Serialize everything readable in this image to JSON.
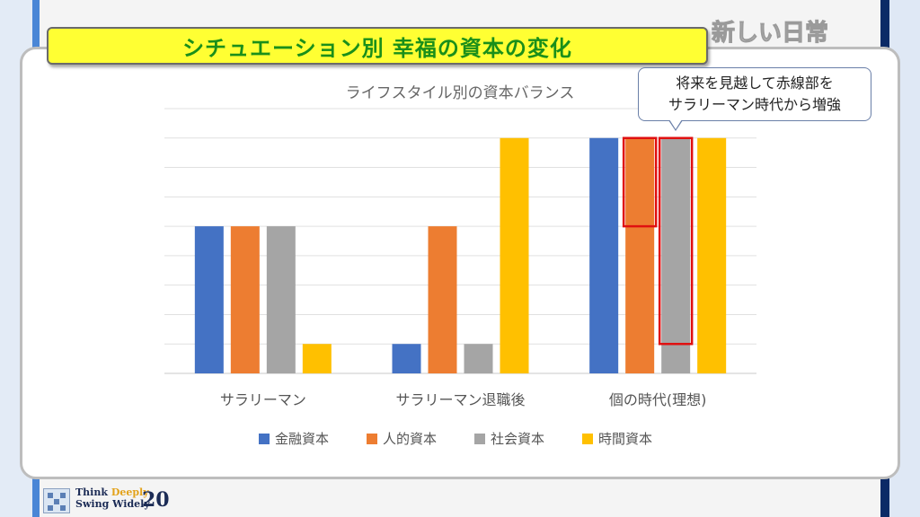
{
  "slide": {
    "title": "シチュエーション別 幸福の資本の変化",
    "corner_tag": "新しい日常",
    "callout": [
      "将来を見越して赤線部を",
      "サラリーマン時代から増強"
    ],
    "brand_line1_a": "Think ",
    "brand_line1_b": "Deeply",
    "brand_line2": "Swing Widely",
    "page_number": "20"
  },
  "colors": {
    "series": [
      "#4472c4",
      "#ed7d31",
      "#a5a5a5",
      "#ffc000"
    ],
    "highlight": "#e01010",
    "title_text": "#1a8f1a",
    "title_bg": "#ffff33"
  },
  "chart_data": {
    "type": "bar",
    "title": "ライフスタイル別の資本バランス",
    "categories": [
      "サラリーマン",
      "サラリーマン退職後",
      "個の時代(理想)"
    ],
    "series": [
      {
        "name": "金融資本",
        "values": [
          5,
          1,
          8
        ]
      },
      {
        "name": "人的資本",
        "values": [
          5,
          5,
          8
        ]
      },
      {
        "name": "社会資本",
        "values": [
          5,
          1,
          8
        ]
      },
      {
        "name": "時間資本",
        "values": [
          1,
          8,
          8
        ]
      }
    ],
    "ylim": [
      0,
      9
    ],
    "grid": true,
    "legend": "bottom",
    "highlights": [
      {
        "category": 2,
        "series": 1,
        "from": 5,
        "to": 8
      },
      {
        "category": 2,
        "series": 2,
        "from": 1,
        "to": 8
      }
    ]
  }
}
